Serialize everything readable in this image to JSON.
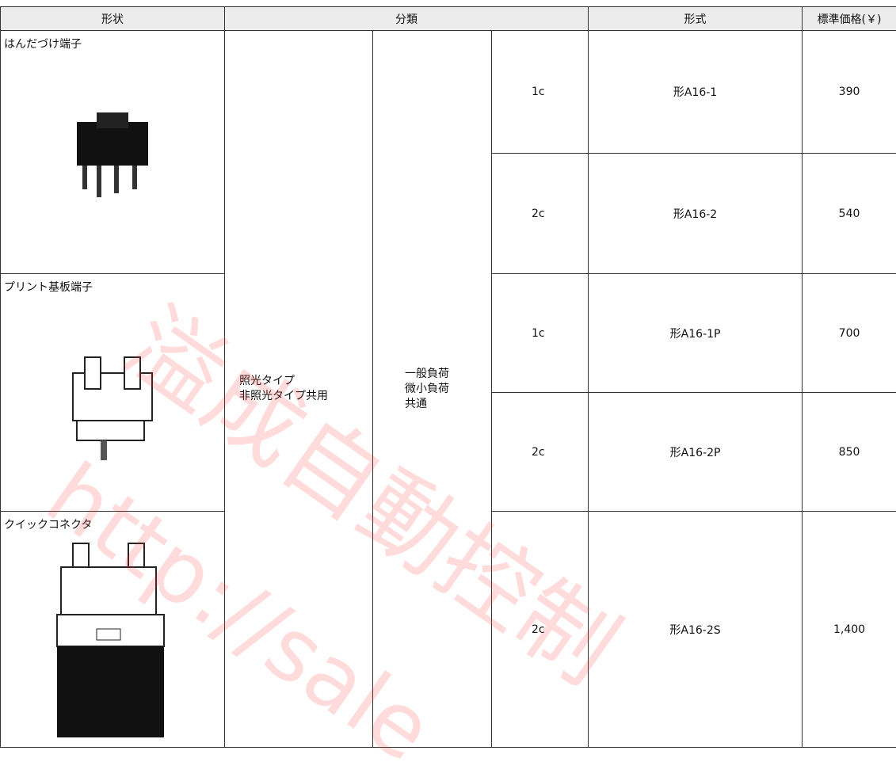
{
  "header": [
    "形状",
    "分類",
    "形式",
    "標準価格(￥)"
  ],
  "shapes": [
    "はんだづけ端子",
    "プリント基板端子",
    "クイックコネクタ"
  ],
  "classification": {
    "type": "照光タイプ\n非照光タイプ共用",
    "load": "一般負荷\n微小負荷\n共通"
  },
  "rows": [
    {
      "contact": "1c",
      "model": "形A16-1",
      "price": "390"
    },
    {
      "contact": "2c",
      "model": "形A16-2",
      "price": "540"
    },
    {
      "contact": "1c",
      "model": "形A16-1P",
      "price": "700"
    },
    {
      "contact": "2c",
      "model": "形A16-2P",
      "price": "850"
    },
    {
      "contact": "2c",
      "model": "形A16-2S",
      "price": "1,400"
    }
  ],
  "watermark": [
    "溢成自動控制",
    "http://sale"
  ]
}
